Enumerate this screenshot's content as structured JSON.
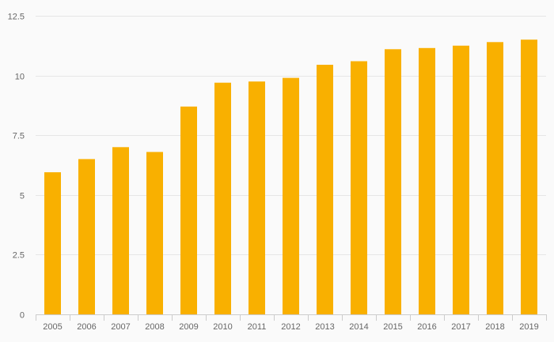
{
  "chart_data": {
    "type": "bar",
    "title": "",
    "xlabel": "",
    "ylabel": "",
    "categories": [
      "2005",
      "2006",
      "2007",
      "2008",
      "2009",
      "2010",
      "2011",
      "2012",
      "2013",
      "2014",
      "2015",
      "2016",
      "2017",
      "2018",
      "2019"
    ],
    "values": [
      5.95,
      6.5,
      7.0,
      6.8,
      8.7,
      9.7,
      9.75,
      9.9,
      10.45,
      10.6,
      11.1,
      11.15,
      11.25,
      11.4,
      11.5
    ],
    "ylim": [
      0,
      12.5
    ],
    "yticks": [
      0,
      2.5,
      5,
      7.5,
      10,
      12.5
    ],
    "ytick_labels": [
      "0",
      "2.5",
      "5",
      "7.5",
      "10",
      "12.5"
    ],
    "bar_color": "#f9b000",
    "grid": true,
    "legend": "none"
  }
}
